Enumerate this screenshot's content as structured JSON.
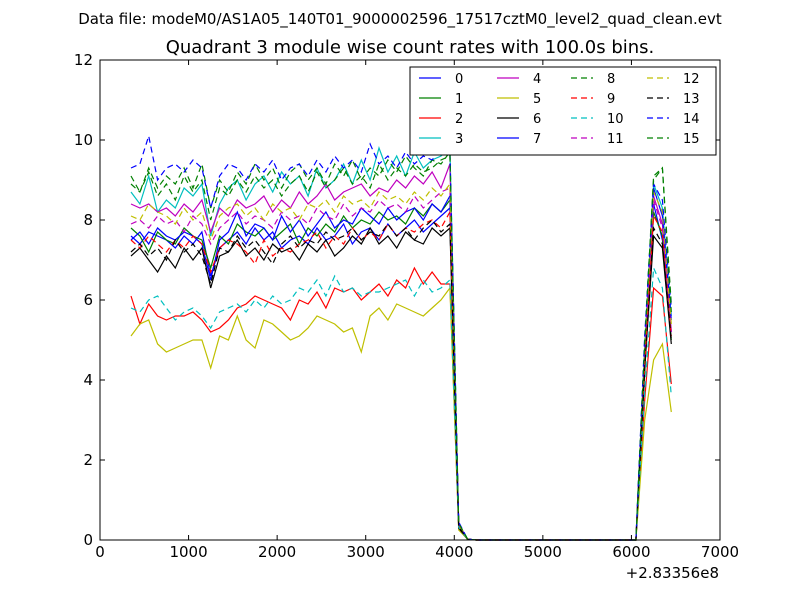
{
  "chart_data": {
    "type": "line",
    "suptitle": "Data file: modeM0/AS1A05_140T01_9000002596_17517cztM0_level2_quad_clean.evt",
    "title": "Quadrant 3 module wise count rates with 100.0s bins.",
    "xlabel": "",
    "ylabel": "",
    "x_offset_label": "+2.83356e8",
    "xlim": [
      0,
      7000
    ],
    "ylim": [
      0,
      12
    ],
    "xticks": [
      0,
      1000,
      2000,
      3000,
      4000,
      5000,
      6000,
      7000
    ],
    "yticks": [
      0,
      2,
      4,
      6,
      8,
      10,
      12
    ],
    "grid": false,
    "legend_position": "top-right",
    "x": [
      350,
      450,
      550,
      650,
      750,
      850,
      950,
      1050,
      1150,
      1250,
      1350,
      1450,
      1550,
      1650,
      1750,
      1850,
      1950,
      2050,
      2150,
      2250,
      2350,
      2450,
      2550,
      2650,
      2750,
      2850,
      2950,
      3050,
      3150,
      3250,
      3350,
      3450,
      3550,
      3650,
      3750,
      3850,
      3950,
      4050,
      4150,
      4250,
      4350,
      4450,
      4550,
      4650,
      4750,
      4850,
      4950,
      5050,
      5150,
      5250,
      5350,
      5450,
      5550,
      5650,
      5750,
      5850,
      5950,
      6050,
      6150,
      6250,
      6350,
      6450
    ],
    "series": [
      {
        "name": "0",
        "color": "#0000ff",
        "dash": "solid",
        "values": [
          7.6,
          7.4,
          7.7,
          7.6,
          7.5,
          7.3,
          7.6,
          7.4,
          7.7,
          6.6,
          7.3,
          7.5,
          7.7,
          7.4,
          7.8,
          7.5,
          7.7,
          7.3,
          7.5,
          7.6,
          7.4,
          7.8,
          7.5,
          7.6,
          7.9,
          7.4,
          7.7,
          7.8,
          7.5,
          7.9,
          7.6,
          7.8,
          8.0,
          7.7,
          7.9,
          8.1,
          8.3,
          0.4,
          0.02,
          0,
          0,
          0,
          0,
          0,
          0,
          0,
          0,
          0,
          0,
          0,
          0,
          0,
          0,
          0,
          0,
          0,
          0,
          0,
          4.5,
          8.4,
          7.5,
          5.2
        ]
      },
      {
        "name": "1",
        "color": "#008000",
        "dash": "solid",
        "values": [
          7.8,
          7.6,
          7.2,
          7.7,
          7.5,
          7.4,
          7.8,
          7.6,
          7.5,
          6.8,
          7.6,
          7.4,
          7.9,
          7.7,
          7.6,
          7.8,
          7.5,
          7.7,
          7.9,
          7.4,
          7.8,
          7.6,
          7.9,
          7.7,
          8.1,
          7.8,
          8.0,
          7.9,
          8.2,
          8.0,
          8.1,
          7.9,
          8.3,
          8.1,
          8.4,
          8.2,
          8.5,
          0.35,
          0.02,
          0,
          0,
          0,
          0,
          0,
          0,
          0,
          0,
          0,
          0,
          0,
          0,
          0,
          0,
          0,
          0,
          0,
          0,
          0,
          4.2,
          8.2,
          7.6,
          5.0
        ]
      },
      {
        "name": "2",
        "color": "#ff0000",
        "dash": "solid",
        "values": [
          6.1,
          5.4,
          5.9,
          5.6,
          5.5,
          5.6,
          5.6,
          5.7,
          5.5,
          5.2,
          5.3,
          5.5,
          5.8,
          5.9,
          6.1,
          6.0,
          5.9,
          5.8,
          5.5,
          6.0,
          5.9,
          6.2,
          5.8,
          6.3,
          6.2,
          6.3,
          6.0,
          6.2,
          6.4,
          6.1,
          6.5,
          6.3,
          6.8,
          6.4,
          6.7,
          6.4,
          6.4,
          0.3,
          0.02,
          0,
          0,
          0,
          0,
          0,
          0,
          0,
          0,
          0,
          0,
          0,
          0,
          0,
          0,
          0,
          0,
          0,
          0,
          0,
          3.5,
          6.3,
          6.1,
          3.9
        ]
      },
      {
        "name": "3",
        "color": "#00bfbf",
        "dash": "solid",
        "values": [
          8.7,
          8.4,
          9.1,
          8.2,
          8.5,
          8.3,
          8.8,
          8.6,
          8.9,
          7.6,
          8.4,
          8.8,
          9.0,
          8.5,
          8.9,
          9.1,
          8.7,
          9.2,
          8.9,
          9.1,
          8.6,
          9.3,
          8.8,
          9.0,
          9.4,
          8.9,
          9.5,
          9.0,
          9.8,
          9.2,
          9.6,
          9.1,
          9.7,
          9.3,
          9.5,
          9.6,
          9.8,
          0.4,
          0.02,
          0,
          0,
          0,
          0,
          0,
          0,
          0,
          0,
          0,
          0,
          0,
          0,
          0,
          0,
          0,
          0,
          0,
          0,
          0,
          4.8,
          8.9,
          8.3,
          5.6
        ]
      },
      {
        "name": "4",
        "color": "#bf00bf",
        "dash": "solid",
        "values": [
          8.4,
          8.3,
          8.4,
          8.2,
          8.3,
          8.1,
          8.4,
          8.2,
          8.5,
          7.7,
          8.3,
          8.1,
          8.5,
          8.3,
          8.4,
          8.6,
          8.2,
          8.5,
          8.3,
          8.7,
          8.4,
          8.6,
          8.9,
          8.5,
          8.7,
          8.8,
          8.9,
          8.6,
          8.8,
          8.7,
          9.0,
          8.8,
          9.1,
          8.9,
          9.2,
          8.8,
          9.4,
          0.38,
          0.02,
          0,
          0,
          0,
          0,
          0,
          0,
          0,
          0,
          0,
          0,
          0,
          0,
          0,
          0,
          0,
          0,
          0,
          0,
          0,
          4.6,
          8.6,
          7.9,
          5.2
        ]
      },
      {
        "name": "5",
        "color": "#bfbf00",
        "dash": "solid",
        "values": [
          5.1,
          5.4,
          5.5,
          4.9,
          4.7,
          4.8,
          4.9,
          5.0,
          5.0,
          4.3,
          5.1,
          5.0,
          5.6,
          5.0,
          4.8,
          5.5,
          5.4,
          5.2,
          5.0,
          5.1,
          5.3,
          5.6,
          5.5,
          5.4,
          5.2,
          5.3,
          4.7,
          5.6,
          5.8,
          5.5,
          5.9,
          5.8,
          5.7,
          5.6,
          5.8,
          6.0,
          6.3,
          0.25,
          0.02,
          0,
          0,
          0,
          0,
          0,
          0,
          0,
          0,
          0,
          0,
          0,
          0,
          0,
          0,
          0,
          0,
          0,
          0,
          0,
          3.0,
          4.5,
          4.9,
          3.2
        ]
      },
      {
        "name": "6",
        "color": "#000000",
        "dash": "solid",
        "values": [
          7.1,
          7.3,
          7.0,
          6.7,
          7.1,
          6.8,
          7.3,
          7.0,
          7.3,
          6.3,
          7.1,
          7.2,
          7.5,
          7.1,
          7.3,
          7.0,
          7.4,
          7.2,
          7.3,
          7.0,
          7.4,
          7.2,
          7.5,
          7.1,
          7.3,
          7.6,
          7.4,
          7.8,
          7.4,
          7.6,
          7.3,
          7.7,
          7.5,
          7.4,
          7.8,
          7.6,
          7.8,
          0.3,
          0.02,
          0,
          0,
          0,
          0,
          0,
          0,
          0,
          0,
          0,
          0,
          0,
          0,
          0,
          0,
          0,
          0,
          0,
          0,
          0,
          4.3,
          7.6,
          7.3,
          4.9
        ]
      },
      {
        "name": "7",
        "color": "#0000ff",
        "dash": "solid",
        "values": [
          7.5,
          7.7,
          7.4,
          7.8,
          7.6,
          7.5,
          7.7,
          7.6,
          7.4,
          6.5,
          7.5,
          7.7,
          8.2,
          7.6,
          7.9,
          7.8,
          7.5,
          8.1,
          7.7,
          8.0,
          7.6,
          7.9,
          8.2,
          7.8,
          8.0,
          7.9,
          8.3,
          8.1,
          7.9,
          8.3,
          8.0,
          8.2,
          8.3,
          8.0,
          8.4,
          8.2,
          8.6,
          0.38,
          0.02,
          0,
          0,
          0,
          0,
          0,
          0,
          0,
          0,
          0,
          0,
          0,
          0,
          0,
          0,
          0,
          0,
          0,
          0,
          0,
          4.7,
          8.8,
          8.1,
          5.5
        ]
      },
      {
        "name": "8",
        "color": "#008000",
        "dash": "dash",
        "values": [
          9.1,
          8.7,
          9.3,
          8.8,
          9.1,
          8.9,
          9.3,
          8.8,
          9.4,
          8.3,
          9.0,
          8.7,
          9.2,
          8.9,
          9.4,
          9.0,
          9.3,
          8.8,
          9.2,
          9.4,
          9.0,
          9.3,
          8.9,
          9.4,
          9.1,
          9.5,
          9.0,
          9.3,
          9.1,
          9.5,
          9.2,
          9.6,
          9.3,
          9.1,
          9.5,
          9.4,
          9.7,
          0.42,
          0.02,
          0,
          0,
          0,
          0,
          0,
          0,
          0,
          0,
          0,
          0,
          0,
          0,
          0,
          0,
          0,
          0,
          0,
          0,
          0,
          5.0,
          9.0,
          9.3,
          5.9
        ]
      },
      {
        "name": "9",
        "color": "#ff0000",
        "dash": "dash",
        "values": [
          7.5,
          7.3,
          7.6,
          7.4,
          7.2,
          7.5,
          7.3,
          7.6,
          7.4,
          6.7,
          7.3,
          7.5,
          7.4,
          7.2,
          6.9,
          7.5,
          7.1,
          7.3,
          7.2,
          7.4,
          7.5,
          7.7,
          7.3,
          7.6,
          7.4,
          7.8,
          7.5,
          7.7,
          7.5,
          7.9,
          7.6,
          7.8,
          7.7,
          7.9,
          8.0,
          7.8,
          8.2,
          0.36,
          0.02,
          0,
          0,
          0,
          0,
          0,
          0,
          0,
          0,
          0,
          0,
          0,
          0,
          0,
          0,
          0,
          0,
          0,
          0,
          0,
          4.4,
          8.1,
          7.7,
          5.1
        ]
      },
      {
        "name": "10",
        "color": "#00bfbf",
        "dash": "dash",
        "values": [
          5.8,
          5.7,
          6.0,
          6.1,
          5.8,
          5.5,
          5.7,
          5.8,
          5.6,
          5.3,
          5.7,
          5.8,
          5.9,
          5.7,
          6.0,
          5.8,
          6.1,
          5.9,
          6.0,
          6.3,
          6.2,
          6.5,
          6.1,
          6.6,
          6.2,
          6.3,
          6.1,
          6.2,
          6.2,
          6.3,
          6.4,
          6.5,
          6.1,
          6.5,
          6.2,
          6.3,
          6.5,
          0.32,
          0.02,
          0,
          0,
          0,
          0,
          0,
          0,
          0,
          0,
          0,
          0,
          0,
          0,
          0,
          0,
          0,
          0,
          0,
          0,
          0,
          3.7,
          6.8,
          6.3,
          3.6
        ]
      },
      {
        "name": "11",
        "color": "#bf00bf",
        "dash": "dash",
        "values": [
          7.9,
          8.0,
          7.8,
          8.1,
          7.9,
          8.0,
          7.7,
          8.1,
          7.9,
          7.4,
          7.8,
          8.0,
          8.2,
          7.9,
          8.1,
          8.0,
          7.8,
          8.2,
          8.0,
          8.1,
          7.9,
          8.3,
          8.1,
          8.0,
          8.4,
          8.1,
          8.3,
          8.2,
          8.5,
          8.3,
          8.4,
          8.2,
          8.6,
          8.3,
          8.5,
          8.7,
          8.8,
          0.37,
          0.02,
          0,
          0,
          0,
          0,
          0,
          0,
          0,
          0,
          0,
          0,
          0,
          0,
          0,
          0,
          0,
          0,
          0,
          0,
          0,
          4.6,
          8.5,
          7.8,
          5.3
        ]
      },
      {
        "name": "12",
        "color": "#bfbf00",
        "dash": "dash",
        "values": [
          8.1,
          8.0,
          8.4,
          8.2,
          8.1,
          7.9,
          8.3,
          8.0,
          8.2,
          7.5,
          8.1,
          8.3,
          8.4,
          8.1,
          8.3,
          8.0,
          8.4,
          8.2,
          8.3,
          8.0,
          8.4,
          8.3,
          8.5,
          8.2,
          8.6,
          8.4,
          8.5,
          8.3,
          8.7,
          8.5,
          8.6,
          8.4,
          8.7,
          8.5,
          8.8,
          8.6,
          8.9,
          0.4,
          0.02,
          0,
          0,
          0,
          0,
          0,
          0,
          0,
          0,
          0,
          0,
          0,
          0,
          0,
          0,
          0,
          0,
          0,
          0,
          0,
          4.8,
          8.7,
          8.2,
          5.4
        ]
      },
      {
        "name": "13",
        "color": "#000000",
        "dash": "dash",
        "values": [
          7.2,
          7.4,
          7.1,
          7.3,
          7.0,
          7.5,
          7.2,
          7.4,
          7.1,
          6.4,
          7.3,
          7.2,
          7.6,
          7.3,
          7.5,
          7.2,
          6.9,
          7.4,
          7.6,
          7.3,
          7.5,
          7.4,
          7.7,
          7.5,
          7.6,
          7.8,
          7.5,
          7.7,
          7.6,
          7.9,
          7.6,
          7.8,
          7.5,
          7.8,
          8.0,
          7.7,
          7.9,
          0.33,
          0.02,
          0,
          0,
          0,
          0,
          0,
          0,
          0,
          0,
          0,
          0,
          0,
          0,
          0,
          0,
          0,
          0,
          0,
          0,
          0,
          4.3,
          7.8,
          7.4,
          5.0
        ]
      },
      {
        "name": "14",
        "color": "#0000ff",
        "dash": "dash",
        "values": [
          9.3,
          9.4,
          10.1,
          9.0,
          9.3,
          9.4,
          9.2,
          9.5,
          9.3,
          8.3,
          9.1,
          9.4,
          9.3,
          9.0,
          9.4,
          9.2,
          9.5,
          9.0,
          9.3,
          9.4,
          9.1,
          9.5,
          9.2,
          9.6,
          9.3,
          9.5,
          9.2,
          9.9,
          9.4,
          9.6,
          9.3,
          9.7,
          9.4,
          9.6,
          9.5,
          9.8,
          9.7,
          0.45,
          0.02,
          0,
          0,
          0,
          0,
          0,
          0,
          0,
          0,
          0,
          0,
          0,
          0,
          0,
          0,
          0,
          0,
          0,
          0,
          0,
          5.1,
          8.9,
          8.5,
          5.8
        ]
      },
      {
        "name": "15",
        "color": "#008000",
        "dash": "dash",
        "values": [
          8.9,
          8.7,
          9.2,
          8.6,
          8.9,
          8.5,
          9.1,
          8.7,
          9.0,
          8.0,
          8.8,
          8.6,
          9.0,
          8.7,
          9.1,
          8.8,
          9.0,
          8.6,
          8.9,
          9.1,
          8.7,
          9.2,
          8.8,
          9.0,
          9.3,
          8.9,
          9.1,
          8.8,
          9.4,
          9.0,
          9.3,
          9.1,
          9.4,
          9.2,
          9.3,
          9.5,
          9.6,
          0.42,
          0.02,
          0,
          0,
          0,
          0,
          0,
          0,
          0,
          0,
          0,
          0,
          0,
          0,
          0,
          0,
          0,
          0,
          0,
          0,
          0,
          4.9,
          9.1,
          9.3,
          5.7
        ]
      }
    ]
  }
}
